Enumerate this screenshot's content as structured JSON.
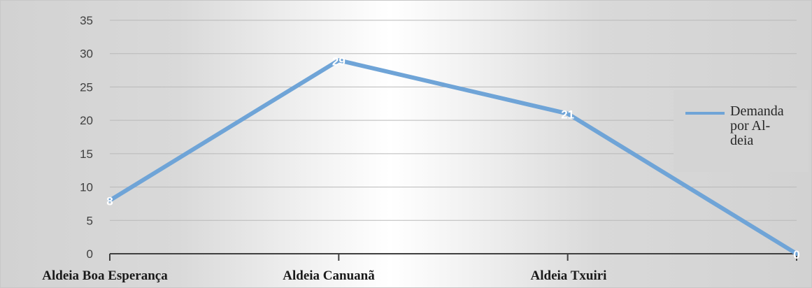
{
  "chart_data": {
    "type": "line",
    "categories": [
      "Aldeia Boa Esperança",
      "Aldeia Canuanã",
      "Aldeia Txuiri",
      ""
    ],
    "series": [
      {
        "name": "Demanda por Aldeia",
        "values": [
          8,
          29,
          21,
          0
        ]
      }
    ],
    "ylim": [
      0,
      35
    ],
    "yticks": [
      0,
      5,
      10,
      15,
      20,
      25,
      30,
      35
    ],
    "grid": true,
    "legend": "right",
    "data_labels": true,
    "colors": {
      "series": "#6fa4d7",
      "data_label": "#ffffff"
    }
  },
  "legend": {
    "label_lines": [
      "Demanda",
      "por Al-",
      "deia"
    ]
  }
}
